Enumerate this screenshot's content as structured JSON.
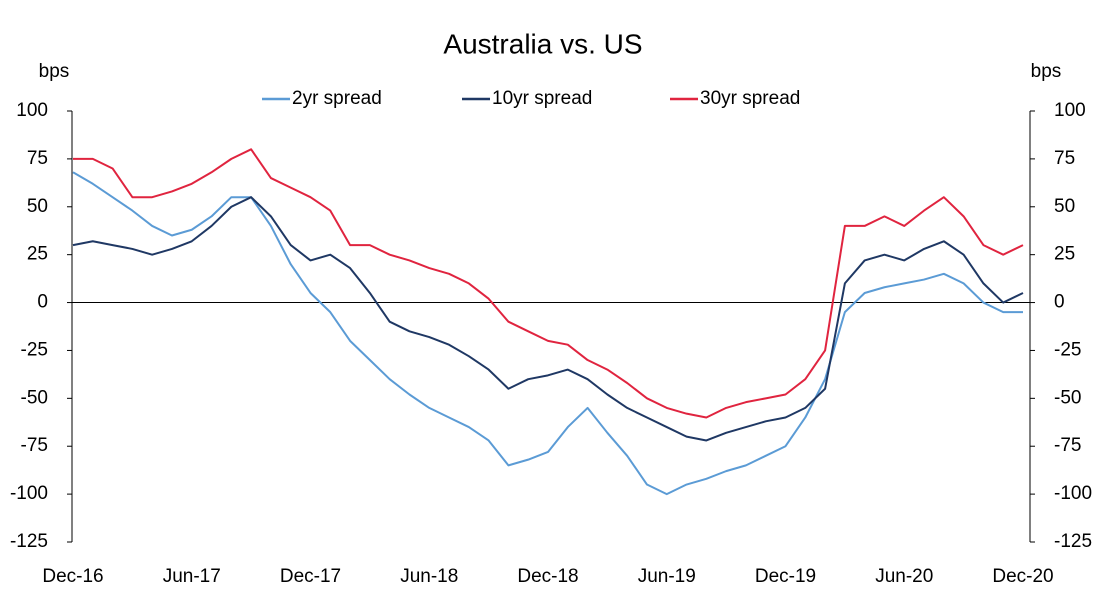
{
  "chart_data": {
    "type": "line",
    "title": "Australia vs. US",
    "y_label": "bps",
    "y2_label": "bps",
    "categories": [
      "Dec-16",
      null,
      null,
      null,
      null,
      null,
      "Jun-17",
      null,
      null,
      null,
      null,
      null,
      "Dec-17",
      null,
      null,
      null,
      null,
      null,
      "Jun-18",
      null,
      null,
      null,
      null,
      null,
      "Dec-18",
      null,
      null,
      null,
      null,
      null,
      "Jun-19",
      null,
      null,
      null,
      null,
      null,
      "Dec-19",
      null,
      null,
      null,
      null,
      null,
      "Jun-20",
      null,
      null,
      null,
      null,
      null,
      "Dec-20"
    ],
    "series": [
      {
        "name": "2yr spread",
        "color": "#5b9bd5",
        "values": [
          68,
          62,
          55,
          48,
          40,
          35,
          38,
          45,
          55,
          55,
          40,
          20,
          5,
          -5,
          -20,
          -30,
          -40,
          -48,
          -55,
          -60,
          -65,
          -72,
          -85,
          -82,
          -78,
          -65,
          -55,
          -68,
          -80,
          -95,
          -100,
          -95,
          -92,
          -88,
          -85,
          -80,
          -75,
          -60,
          -40,
          -5,
          5,
          8,
          10,
          12,
          15,
          10,
          0,
          -5,
          -5
        ]
      },
      {
        "name": "10yr spread",
        "color": "#1f3864",
        "values": [
          30,
          32,
          30,
          28,
          25,
          28,
          32,
          40,
          50,
          55,
          45,
          30,
          22,
          25,
          18,
          5,
          -10,
          -15,
          -18,
          -22,
          -28,
          -35,
          -45,
          -40,
          -38,
          -35,
          -40,
          -48,
          -55,
          -60,
          -65,
          -70,
          -72,
          -68,
          -65,
          -62,
          -60,
          -55,
          -45,
          10,
          22,
          25,
          22,
          28,
          32,
          25,
          10,
          0,
          5
        ]
      },
      {
        "name": "30yr spread",
        "color": "#e0243f",
        "values": [
          75,
          75,
          70,
          55,
          55,
          58,
          62,
          68,
          75,
          80,
          65,
          60,
          55,
          48,
          30,
          30,
          25,
          22,
          18,
          15,
          10,
          2,
          -10,
          -15,
          -20,
          -22,
          -30,
          -35,
          -42,
          -50,
          -55,
          -58,
          -60,
          -55,
          -52,
          -50,
          -48,
          -40,
          -25,
          40,
          40,
          45,
          40,
          48,
          55,
          45,
          30,
          25,
          30
        ]
      }
    ],
    "ylim": [
      -125,
      100
    ],
    "yticks": [
      -125,
      -100,
      -75,
      -50,
      -25,
      0,
      25,
      50,
      75,
      100
    ],
    "y2lim": [
      -125,
      100
    ],
    "y2ticks": [
      -125,
      -100,
      -75,
      -50,
      -25,
      0,
      25,
      50,
      75,
      100
    ],
    "grid": false
  }
}
